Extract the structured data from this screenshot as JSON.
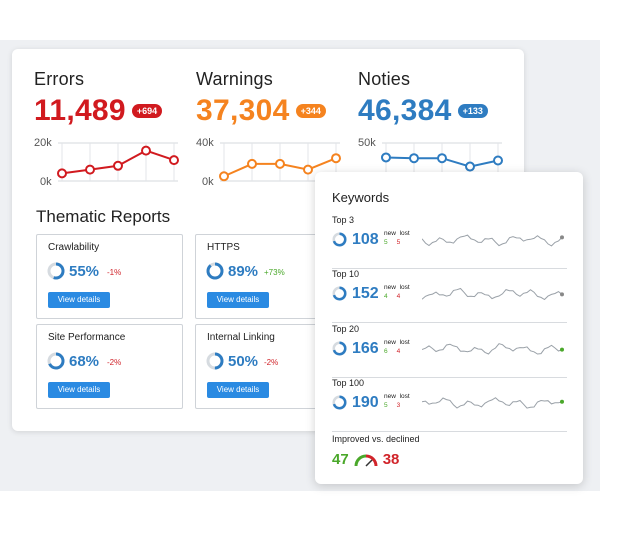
{
  "colors": {
    "errors": "#d11a1f",
    "warnings": "#f5831f",
    "notices": "#2e7cc1",
    "positive": "#4aa82a",
    "negative": "#d1242a",
    "button": "#2a8ae2"
  },
  "metrics": [
    {
      "label": "Errors",
      "value": "11,489",
      "badge": "+694",
      "axis_top": "20k",
      "axis_bottom": "0k",
      "trend": [
        4,
        6,
        8,
        16,
        11
      ]
    },
    {
      "label": "Warnings",
      "value": "37,304",
      "badge": "+344",
      "axis_top": "40k",
      "axis_bottom": "0k",
      "trend": [
        5,
        18,
        18,
        12,
        24
      ]
    },
    {
      "label": "Noties",
      "value": "46,384",
      "badge": "+133",
      "axis_top": "50k",
      "axis_bottom": "0k",
      "trend": [
        31,
        30,
        30,
        19,
        27
      ]
    }
  ],
  "thematic": {
    "title": "Thematic Reports",
    "button_label": "View details",
    "cards": [
      {
        "title": "Crawlability",
        "percent": "55%",
        "delta": "-1%",
        "delta_positive": false,
        "fraction": 0.55
      },
      {
        "title": "HTTPS",
        "percent": "89%",
        "delta": "+73%",
        "delta_positive": true,
        "fraction": 0.89
      },
      {
        "title": "Site Performance",
        "percent": "68%",
        "delta": "-2%",
        "delta_positive": false,
        "fraction": 0.68
      },
      {
        "title": "Internal Linking",
        "percent": "50%",
        "delta": "-2%",
        "delta_positive": false,
        "fraction": 0.5
      }
    ]
  },
  "keywords": {
    "title": "Keywords",
    "new_label": "new",
    "lost_label": "lost",
    "rows": [
      {
        "label": "Top 3",
        "value": "108",
        "new": "5",
        "lost": "5",
        "fraction": 0.7,
        "end_color": "#888888"
      },
      {
        "label": "Top 10",
        "value": "152",
        "new": "4",
        "lost": "4",
        "fraction": 0.7,
        "end_color": "#888888"
      },
      {
        "label": "Top 20",
        "value": "166",
        "new": "6",
        "lost": "4",
        "fraction": 0.7,
        "end_color": "#4aa82a"
      },
      {
        "label": "Top 100",
        "value": "190",
        "new": "5",
        "lost": "3",
        "fraction": 0.7,
        "end_color": "#4aa82a"
      }
    ],
    "improved_label": "Improved vs. declined",
    "improved": "47",
    "declined": "38"
  }
}
